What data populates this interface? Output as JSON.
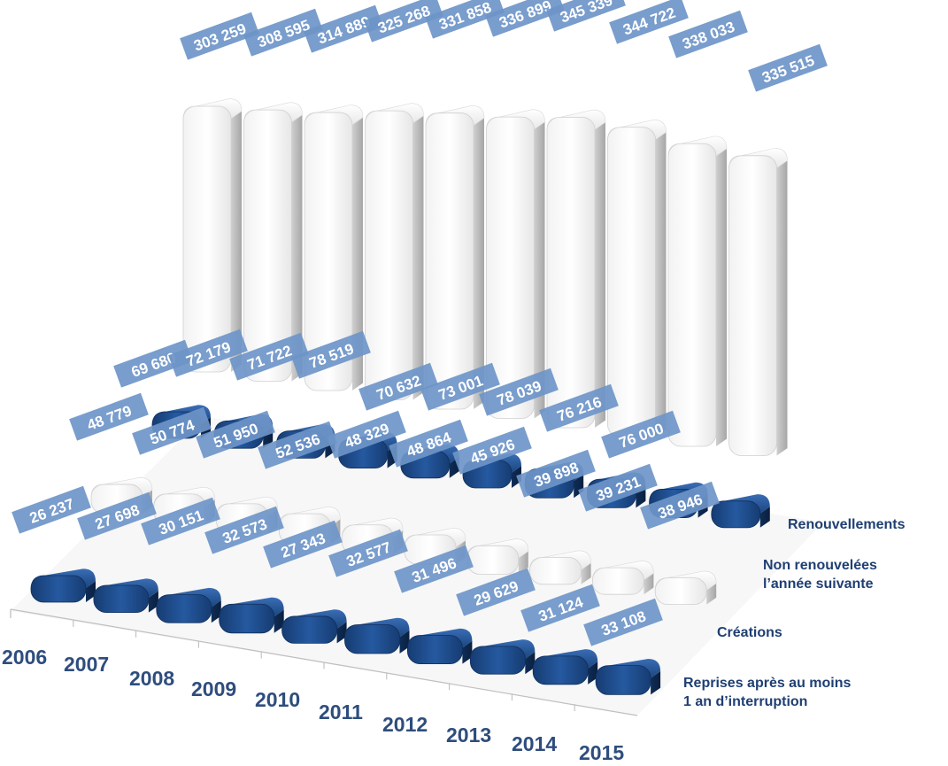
{
  "chart_data": {
    "type": "bar",
    "style": "3d-column-rows",
    "categories": [
      "2006",
      "2007",
      "2008",
      "2009",
      "2010",
      "2011",
      "2012",
      "2013",
      "2014",
      "2015"
    ],
    "series": [
      {
        "name": "Renouvellements",
        "color": "#ffffff",
        "values": [
          303259,
          308595,
          314889,
          325268,
          331858,
          336899,
          345339,
          344722,
          338033,
          335515
        ],
        "labels": [
          "303 259",
          "308 595",
          "314 889",
          "325 268",
          "331 858",
          "336 899",
          "345 339",
          "344 722",
          "338 033",
          "335 515"
        ]
      },
      {
        "name": "Non renouvelées\nl’année suivante",
        "color": "#1f4e8c",
        "values": [
          69680,
          72179,
          71722,
          78519,
          70632,
          73001,
          78039,
          76216,
          76000,
          null
        ],
        "labels": [
          "69 680",
          "72 179",
          "71 722",
          "78 519",
          "70 632",
          "73 001",
          "78 039",
          "76 216",
          "76 000",
          ""
        ]
      },
      {
        "name": "Créations",
        "color": "#ffffff",
        "values": [
          48779,
          50774,
          51950,
          52536,
          48329,
          48864,
          45926,
          39898,
          39231,
          38946
        ],
        "labels": [
          "48 779",
          "50 774",
          "51 950",
          "52 536",
          "48 329",
          "48 864",
          "45 926",
          "39 898",
          "39 231",
          "38 946"
        ]
      },
      {
        "name": "Reprises après au moins\n1 an d’interruption",
        "color": "#1f4e8c",
        "values": [
          26237,
          27698,
          30151,
          32573,
          27343,
          32577,
          31496,
          29629,
          31124,
          33108
        ],
        "labels": [
          "26 237",
          "27 698",
          "30 151",
          "32 573",
          "27 343",
          "32 577",
          "31 496",
          "29 629",
          "31 124",
          "33 108"
        ]
      }
    ],
    "label_box_color": "#6e95c8",
    "axis_color": "#bfbfbf",
    "year_label_color": "#2e4d7d",
    "series_label_color": "#1f3f73"
  }
}
